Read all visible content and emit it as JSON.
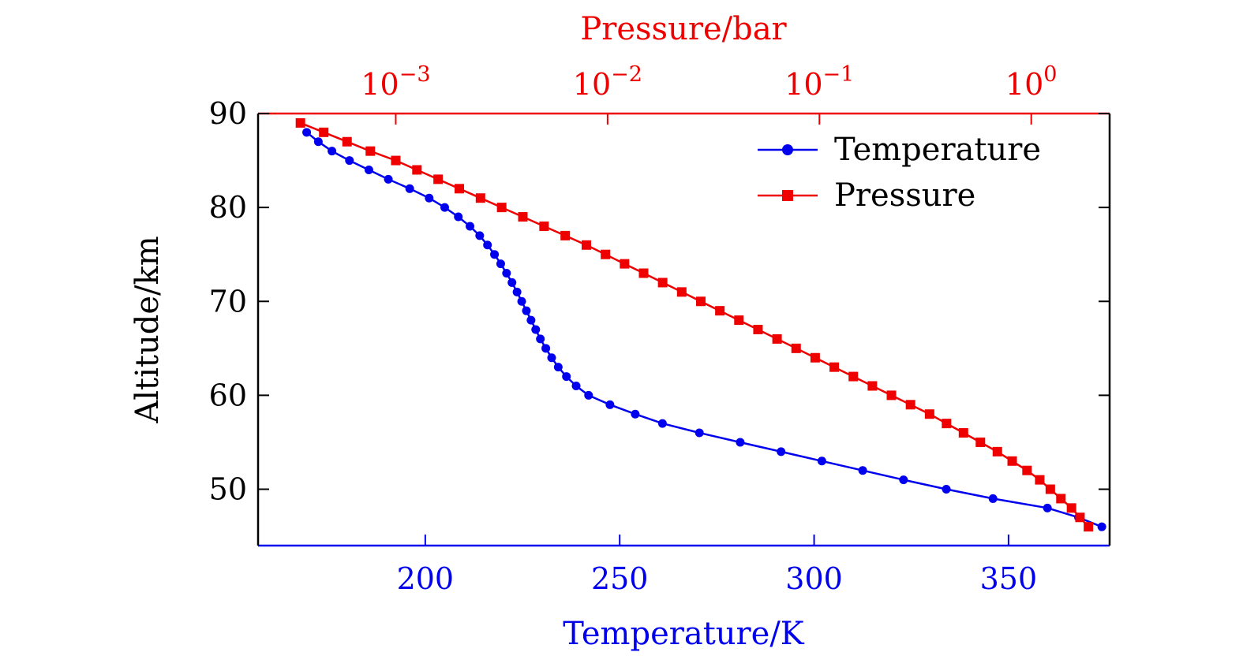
{
  "chart_data": {
    "type": "line",
    "ylabel": "Altitude/km",
    "xlabel_bottom": "Temperature/K",
    "xlabel_top": "Pressure/bar",
    "ylim": [
      44,
      90
    ],
    "y_ticks": [
      50,
      60,
      70,
      80,
      90
    ],
    "x_bottom_lim": [
      157,
      376
    ],
    "x_bottom_ticks": [
      200,
      250,
      300,
      350
    ],
    "x_top_scale": "log",
    "x_top_lim_log10": [
      -3.65,
      0.37
    ],
    "x_top_ticks": [
      {
        "base": "10",
        "exp": "−3",
        "log10": -3
      },
      {
        "base": "10",
        "exp": "−2",
        "log10": -2
      },
      {
        "base": "10",
        "exp": "−1",
        "log10": -1
      },
      {
        "base": "10",
        "exp": "0",
        "log10": 0
      }
    ],
    "grid": false,
    "legend_position": "top-right",
    "colors": {
      "temperature": "#0000ee",
      "pressure": "#ee0000",
      "left_axis": "#000000"
    },
    "series": [
      {
        "name": "Temperature",
        "axis": "bottom",
        "marker": "circle",
        "points": [
          {
            "x": 169.5,
            "y": 88
          },
          {
            "x": 172.5,
            "y": 87
          },
          {
            "x": 176,
            "y": 86
          },
          {
            "x": 180.5,
            "y": 85
          },
          {
            "x": 185.5,
            "y": 84
          },
          {
            "x": 190.5,
            "y": 83
          },
          {
            "x": 196,
            "y": 82
          },
          {
            "x": 201,
            "y": 81
          },
          {
            "x": 205,
            "y": 80
          },
          {
            "x": 208.5,
            "y": 79
          },
          {
            "x": 211.5,
            "y": 78
          },
          {
            "x": 214,
            "y": 77
          },
          {
            "x": 216,
            "y": 76
          },
          {
            "x": 217.8,
            "y": 75
          },
          {
            "x": 219.4,
            "y": 74
          },
          {
            "x": 220.9,
            "y": 73
          },
          {
            "x": 222.3,
            "y": 72
          },
          {
            "x": 223.6,
            "y": 71
          },
          {
            "x": 224.8,
            "y": 70
          },
          {
            "x": 226,
            "y": 69
          },
          {
            "x": 227.2,
            "y": 68
          },
          {
            "x": 228.4,
            "y": 67
          },
          {
            "x": 229.6,
            "y": 66
          },
          {
            "x": 231,
            "y": 65
          },
          {
            "x": 232.5,
            "y": 64
          },
          {
            "x": 234.2,
            "y": 63
          },
          {
            "x": 236.3,
            "y": 62
          },
          {
            "x": 238.8,
            "y": 61
          },
          {
            "x": 242,
            "y": 60
          },
          {
            "x": 247.5,
            "y": 59
          },
          {
            "x": 254,
            "y": 58
          },
          {
            "x": 261,
            "y": 57
          },
          {
            "x": 270.5,
            "y": 56
          },
          {
            "x": 281,
            "y": 55
          },
          {
            "x": 291.5,
            "y": 54
          },
          {
            "x": 302,
            "y": 53
          },
          {
            "x": 312.5,
            "y": 52
          },
          {
            "x": 323,
            "y": 51
          },
          {
            "x": 334,
            "y": 50
          },
          {
            "x": 346,
            "y": 49
          },
          {
            "x": 360,
            "y": 48
          },
          {
            "x": 368,
            "y": 47
          },
          {
            "x": 374,
            "y": 46
          }
        ]
      },
      {
        "name": "Pressure",
        "axis": "top",
        "marker": "square",
        "points": [
          {
            "log10": -3.45,
            "y": 89
          },
          {
            "log10": -3.34,
            "y": 88
          },
          {
            "log10": -3.23,
            "y": 87
          },
          {
            "log10": -3.12,
            "y": 86
          },
          {
            "log10": -3.0,
            "y": 85
          },
          {
            "log10": -2.9,
            "y": 84
          },
          {
            "log10": -2.8,
            "y": 83
          },
          {
            "log10": -2.7,
            "y": 82
          },
          {
            "log10": -2.6,
            "y": 81
          },
          {
            "log10": -2.5,
            "y": 80
          },
          {
            "log10": -2.4,
            "y": 79
          },
          {
            "log10": -2.3,
            "y": 78
          },
          {
            "log10": -2.2,
            "y": 77
          },
          {
            "log10": -2.1,
            "y": 76
          },
          {
            "log10": -2.01,
            "y": 75
          },
          {
            "log10": -1.92,
            "y": 74
          },
          {
            "log10": -1.83,
            "y": 73
          },
          {
            "log10": -1.74,
            "y": 72
          },
          {
            "log10": -1.65,
            "y": 71
          },
          {
            "log10": -1.56,
            "y": 70
          },
          {
            "log10": -1.47,
            "y": 69
          },
          {
            "log10": -1.38,
            "y": 68
          },
          {
            "log10": -1.29,
            "y": 67
          },
          {
            "log10": -1.2,
            "y": 66
          },
          {
            "log10": -1.11,
            "y": 65
          },
          {
            "log10": -1.02,
            "y": 64
          },
          {
            "log10": -0.93,
            "y": 63
          },
          {
            "log10": -0.84,
            "y": 62
          },
          {
            "log10": -0.75,
            "y": 61
          },
          {
            "log10": -0.66,
            "y": 60
          },
          {
            "log10": -0.57,
            "y": 59
          },
          {
            "log10": -0.48,
            "y": 58
          },
          {
            "log10": -0.4,
            "y": 57
          },
          {
            "log10": -0.32,
            "y": 56
          },
          {
            "log10": -0.24,
            "y": 55
          },
          {
            "log10": -0.16,
            "y": 54
          },
          {
            "log10": -0.09,
            "y": 53
          },
          {
            "log10": -0.02,
            "y": 52
          },
          {
            "log10": 0.04,
            "y": 51
          },
          {
            "log10": 0.09,
            "y": 50
          },
          {
            "log10": 0.14,
            "y": 49
          },
          {
            "log10": 0.19,
            "y": 48
          },
          {
            "log10": 0.23,
            "y": 47
          },
          {
            "log10": 0.27,
            "y": 46
          }
        ]
      }
    ]
  }
}
